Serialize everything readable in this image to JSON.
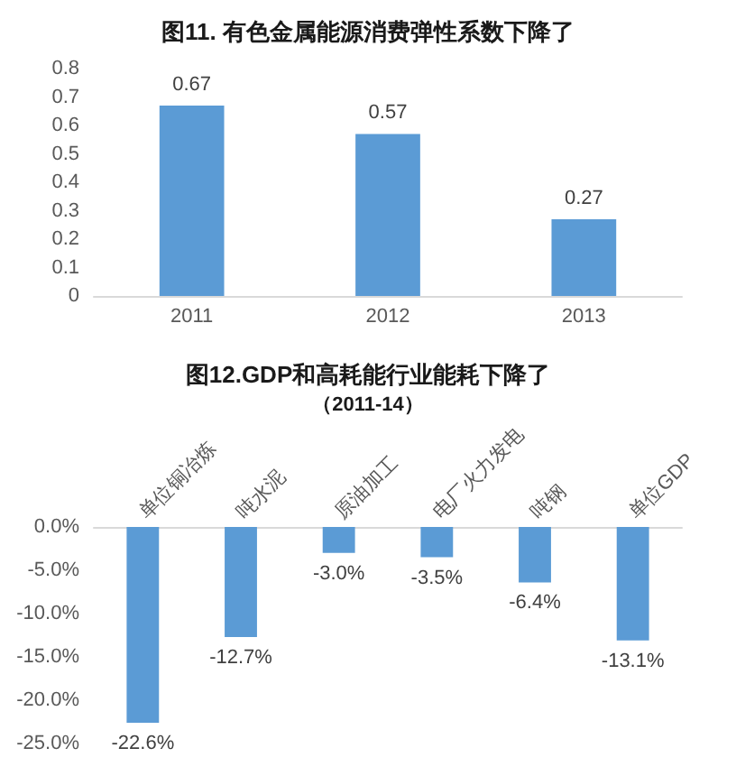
{
  "chart_data": [
    {
      "type": "bar",
      "title": "图11. 有色金属能源消费弹性系数下降了",
      "categories": [
        "2011",
        "2012",
        "2013"
      ],
      "values": [
        0.67,
        0.57,
        0.27
      ],
      "color": "#5b9bd5",
      "ylim": [
        0,
        0.8
      ],
      "yticks": [
        0,
        0.1,
        0.2,
        0.3,
        0.4,
        0.5,
        0.6,
        0.7,
        0.8
      ],
      "data_labels": true
    },
    {
      "type": "bar",
      "title": "图12.GDP和高耗能行业能耗下降了",
      "subtitle": "（2011-14）",
      "categories": [
        "单位铜冶炼",
        "吨水泥",
        "原油加工",
        "电厂火力发电",
        "吨钢",
        "单位GDP"
      ],
      "values": [
        -22.6,
        -12.7,
        -3.0,
        -3.5,
        -6.4,
        -13.1
      ],
      "color": "#5b9bd5",
      "ylim": [
        -25,
        0
      ],
      "yticks": [
        {
          "value": -25,
          "label": "-25.0%"
        },
        {
          "value": -20,
          "label": "-20.0%"
        },
        {
          "value": -15,
          "label": "-15.0%"
        },
        {
          "value": -10,
          "label": "-10.0%"
        },
        {
          "value": -5,
          "label": "-5.0%"
        },
        {
          "value": 0,
          "label": "0.0%"
        }
      ],
      "value_labels": [
        "-22.6%",
        "-12.7%",
        "-3.0%",
        "-3.5%",
        "-6.4%",
        "-13.1%"
      ]
    }
  ]
}
